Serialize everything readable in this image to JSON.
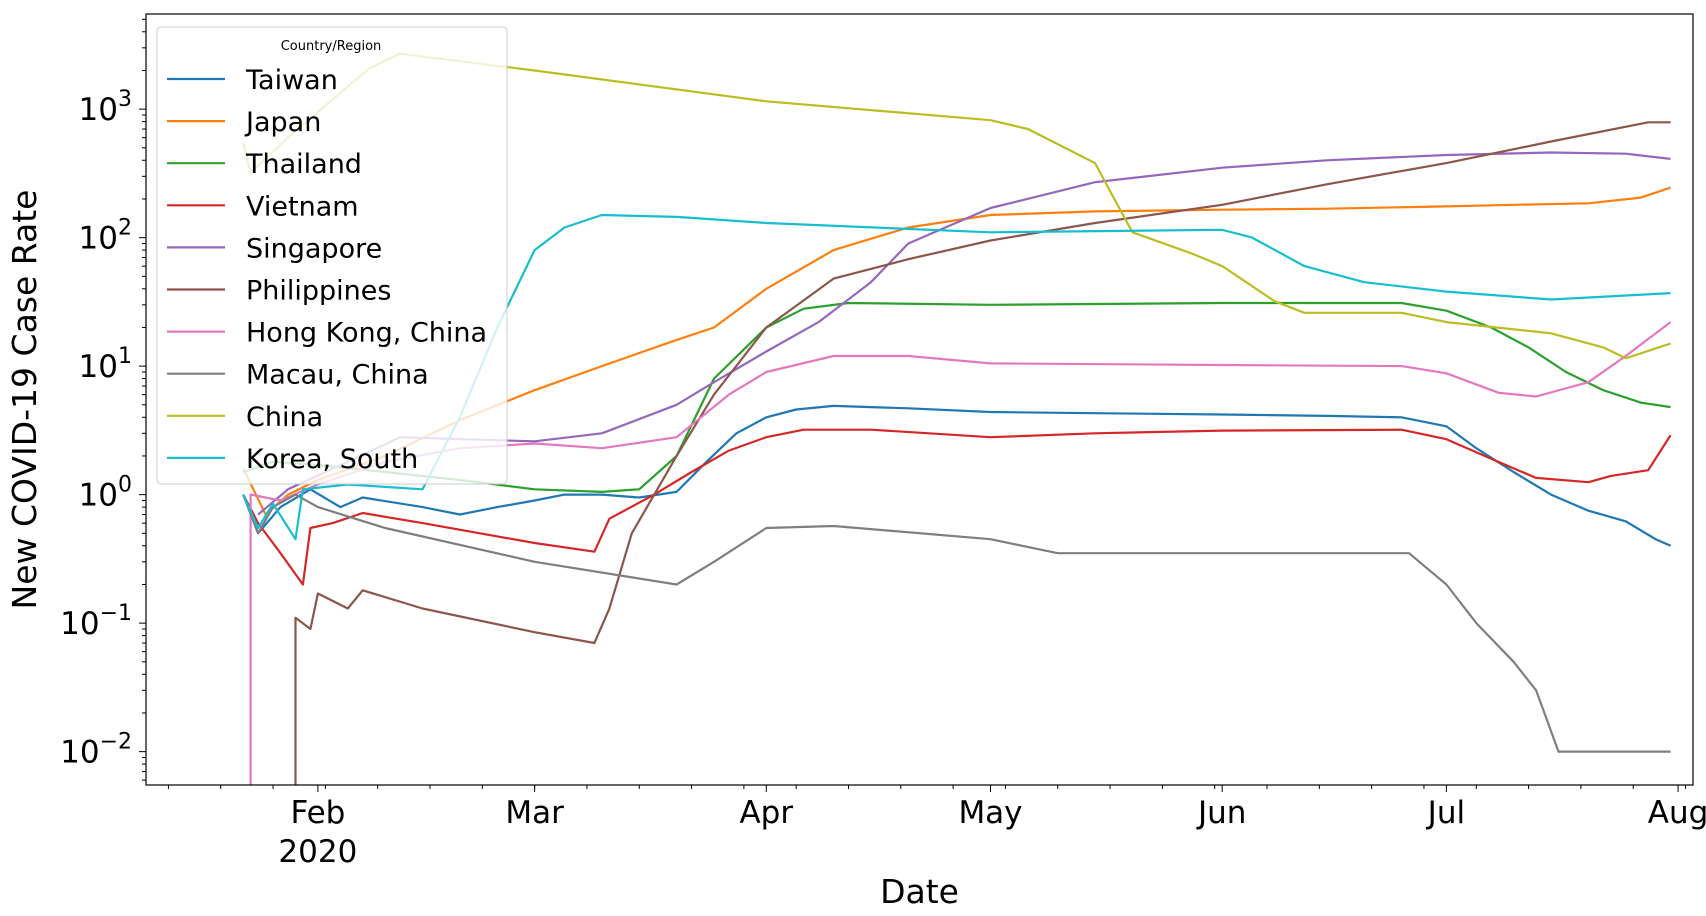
{
  "chart_data": {
    "type": "line",
    "title": "",
    "xlabel": "Date",
    "ylabel": "New COVID-19 Case Rate",
    "yscale": "log",
    "ylim": [
      0.0055,
      5500
    ],
    "xlim": [
      "2020-01-09",
      "2020-08-03"
    ],
    "grid": false,
    "legend": {
      "title": "Country/Region",
      "placement": "top-left"
    },
    "x_ticks": [
      {
        "date": "2020-02-01",
        "label": "Feb",
        "sublabel": "2020"
      },
      {
        "date": "2020-03-01",
        "label": "Mar",
        "sublabel": ""
      },
      {
        "date": "2020-04-01",
        "label": "Apr",
        "sublabel": ""
      },
      {
        "date": "2020-05-01",
        "label": "May",
        "sublabel": ""
      },
      {
        "date": "2020-06-01",
        "label": "Jun",
        "sublabel": ""
      },
      {
        "date": "2020-07-01",
        "label": "Jul",
        "sublabel": ""
      },
      {
        "date": "2020-08-01",
        "label": "Aug",
        "sublabel": ""
      }
    ],
    "y_ticks": [
      {
        "value": 0.01,
        "base": "10",
        "exp": "−2"
      },
      {
        "value": 0.1,
        "base": "10",
        "exp": "−1"
      },
      {
        "value": 1,
        "base": "10",
        "exp": "0"
      },
      {
        "value": 10,
        "base": "10",
        "exp": "1"
      },
      {
        "value": 100,
        "base": "10",
        "exp": "2"
      },
      {
        "value": 1000,
        "base": "10",
        "exp": "3"
      }
    ],
    "series": [
      {
        "name": "Taiwan",
        "color": "#1f77b4",
        "points": [
          [
            "2020-01-22",
            1
          ],
          [
            "2020-01-24",
            0.5
          ],
          [
            "2020-01-27",
            0.8
          ],
          [
            "2020-01-31",
            1.1
          ],
          [
            "2020-02-04",
            0.8
          ],
          [
            "2020-02-07",
            0.95
          ],
          [
            "2020-02-15",
            0.8
          ],
          [
            "2020-02-20",
            0.7
          ],
          [
            "2020-02-25",
            0.8
          ],
          [
            "2020-03-01",
            0.9
          ],
          [
            "2020-03-05",
            1.0
          ],
          [
            "2020-03-10",
            1.0
          ],
          [
            "2020-03-15",
            0.95
          ],
          [
            "2020-03-20",
            1.05
          ],
          [
            "2020-03-24",
            1.8
          ],
          [
            "2020-03-28",
            3.0
          ],
          [
            "2020-04-01",
            4.0
          ],
          [
            "2020-04-05",
            4.6
          ],
          [
            "2020-04-10",
            4.9
          ],
          [
            "2020-04-20",
            4.7
          ],
          [
            "2020-05-01",
            4.4
          ],
          [
            "2020-05-15",
            4.3
          ],
          [
            "2020-06-01",
            4.2
          ],
          [
            "2020-06-15",
            4.1
          ],
          [
            "2020-06-25",
            4.0
          ],
          [
            "2020-07-01",
            3.4
          ],
          [
            "2020-07-05",
            2.3
          ],
          [
            "2020-07-10",
            1.5
          ],
          [
            "2020-07-15",
            1.0
          ],
          [
            "2020-07-20",
            0.75
          ],
          [
            "2020-07-25",
            0.62
          ],
          [
            "2020-07-29",
            0.45
          ],
          [
            "2020-07-31",
            0.4
          ]
        ]
      },
      {
        "name": "Japan",
        "color": "#ff7f0e",
        "points": [
          [
            "2020-01-22",
            1.6
          ],
          [
            "2020-01-25",
            0.7
          ],
          [
            "2020-01-28",
            1.0
          ],
          [
            "2020-02-01",
            1.3
          ],
          [
            "2020-02-10",
            2.0
          ],
          [
            "2020-02-20",
            3.8
          ],
          [
            "2020-03-01",
            6.5
          ],
          [
            "2020-03-10",
            10
          ],
          [
            "2020-03-20",
            16
          ],
          [
            "2020-03-25",
            20
          ],
          [
            "2020-04-01",
            40
          ],
          [
            "2020-04-10",
            80
          ],
          [
            "2020-04-20",
            120
          ],
          [
            "2020-05-01",
            150
          ],
          [
            "2020-05-15",
            160
          ],
          [
            "2020-06-01",
            165
          ],
          [
            "2020-06-15",
            168
          ],
          [
            "2020-07-01",
            175
          ],
          [
            "2020-07-10",
            180
          ],
          [
            "2020-07-20",
            185
          ],
          [
            "2020-07-27",
            205
          ],
          [
            "2020-07-31",
            245
          ]
        ]
      },
      {
        "name": "Thailand",
        "color": "#2ca02c",
        "points": [
          [
            "2020-01-22",
            1.5
          ],
          [
            "2020-01-26",
            1.8
          ],
          [
            "2020-02-01",
            1.7
          ],
          [
            "2020-02-10",
            1.5
          ],
          [
            "2020-02-20",
            1.3
          ],
          [
            "2020-03-01",
            1.1
          ],
          [
            "2020-03-10",
            1.05
          ],
          [
            "2020-03-15",
            1.1
          ],
          [
            "2020-03-20",
            2.0
          ],
          [
            "2020-03-25",
            8.0
          ],
          [
            "2020-04-01",
            20
          ],
          [
            "2020-04-06",
            28
          ],
          [
            "2020-04-12",
            31
          ],
          [
            "2020-05-01",
            30
          ],
          [
            "2020-06-01",
            31
          ],
          [
            "2020-06-25",
            31
          ],
          [
            "2020-07-01",
            27
          ],
          [
            "2020-07-07",
            20
          ],
          [
            "2020-07-12",
            14
          ],
          [
            "2020-07-17",
            9
          ],
          [
            "2020-07-22",
            6.5
          ],
          [
            "2020-07-27",
            5.2
          ],
          [
            "2020-07-31",
            4.8
          ]
        ]
      },
      {
        "name": "Vietnam",
        "color": "#d62728",
        "points": [
          [
            "2020-01-22",
            1.0
          ],
          [
            "2020-01-24",
            0.6
          ],
          [
            "2020-01-27",
            0.35
          ],
          [
            "2020-01-30",
            0.2
          ],
          [
            "2020-01-31",
            0.55
          ],
          [
            "2020-02-03",
            0.6
          ],
          [
            "2020-02-07",
            0.72
          ],
          [
            "2020-02-15",
            0.6
          ],
          [
            "2020-03-01",
            0.42
          ],
          [
            "2020-03-09",
            0.36
          ],
          [
            "2020-03-11",
            0.65
          ],
          [
            "2020-03-17",
            1.0
          ],
          [
            "2020-03-22",
            1.5
          ],
          [
            "2020-03-27",
            2.2
          ],
          [
            "2020-04-01",
            2.8
          ],
          [
            "2020-04-06",
            3.2
          ],
          [
            "2020-04-15",
            3.2
          ],
          [
            "2020-05-01",
            2.8
          ],
          [
            "2020-05-15",
            3.0
          ],
          [
            "2020-06-01",
            3.15
          ],
          [
            "2020-06-25",
            3.2
          ],
          [
            "2020-07-01",
            2.7
          ],
          [
            "2020-07-07",
            1.9
          ],
          [
            "2020-07-13",
            1.35
          ],
          [
            "2020-07-20",
            1.25
          ],
          [
            "2020-07-23",
            1.4
          ],
          [
            "2020-07-28",
            1.55
          ],
          [
            "2020-07-31",
            2.9
          ]
        ]
      },
      {
        "name": "Singapore",
        "color": "#9467bd",
        "points": [
          [
            "2020-01-24",
            0.7
          ],
          [
            "2020-01-28",
            1.1
          ],
          [
            "2020-02-05",
            1.8
          ],
          [
            "2020-02-12",
            2.8
          ],
          [
            "2020-02-20",
            2.7
          ],
          [
            "2020-03-01",
            2.6
          ],
          [
            "2020-03-10",
            3.0
          ],
          [
            "2020-03-20",
            5.0
          ],
          [
            "2020-03-25",
            7.5
          ],
          [
            "2020-04-01",
            13
          ],
          [
            "2020-04-08",
            22
          ],
          [
            "2020-04-15",
            45
          ],
          [
            "2020-04-20",
            90
          ],
          [
            "2020-05-01",
            170
          ],
          [
            "2020-05-15",
            270
          ],
          [
            "2020-06-01",
            350
          ],
          [
            "2020-06-15",
            400
          ],
          [
            "2020-07-01",
            440
          ],
          [
            "2020-07-15",
            460
          ],
          [
            "2020-07-25",
            450
          ],
          [
            "2020-07-31",
            410
          ]
        ]
      },
      {
        "name": "Philippines",
        "color": "#8c564b",
        "points": [
          [
            "2020-01-29",
            0.005
          ],
          [
            "2020-01-29",
            0.11
          ],
          [
            "2020-01-31",
            0.09
          ],
          [
            "2020-02-01",
            0.17
          ],
          [
            "2020-02-05",
            0.13
          ],
          [
            "2020-02-07",
            0.18
          ],
          [
            "2020-02-15",
            0.13
          ],
          [
            "2020-03-01",
            0.085
          ],
          [
            "2020-03-09",
            0.07
          ],
          [
            "2020-03-11",
            0.13
          ],
          [
            "2020-03-14",
            0.5
          ],
          [
            "2020-03-20",
            2.0
          ],
          [
            "2020-03-25",
            6.0
          ],
          [
            "2020-04-01",
            20
          ],
          [
            "2020-04-10",
            48
          ],
          [
            "2020-04-20",
            68
          ],
          [
            "2020-05-01",
            95
          ],
          [
            "2020-05-15",
            130
          ],
          [
            "2020-06-01",
            180
          ],
          [
            "2020-06-15",
            260
          ],
          [
            "2020-07-01",
            380
          ],
          [
            "2020-07-15",
            560
          ],
          [
            "2020-07-28",
            790
          ],
          [
            "2020-07-31",
            790
          ]
        ]
      },
      {
        "name": "Hong Kong, China",
        "color": "#e377c2",
        "points": [
          [
            "2020-01-23",
            0.005
          ],
          [
            "2020-01-23",
            1.0
          ],
          [
            "2020-01-27",
            0.9
          ],
          [
            "2020-02-01",
            1.2
          ],
          [
            "2020-02-10",
            1.8
          ],
          [
            "2020-02-20",
            2.3
          ],
          [
            "2020-03-01",
            2.5
          ],
          [
            "2020-03-10",
            2.3
          ],
          [
            "2020-03-20",
            2.8
          ],
          [
            "2020-03-27",
            6.0
          ],
          [
            "2020-04-01",
            9.0
          ],
          [
            "2020-04-10",
            12
          ],
          [
            "2020-04-20",
            12
          ],
          [
            "2020-05-01",
            10.5
          ],
          [
            "2020-06-01",
            10.2
          ],
          [
            "2020-06-25",
            10
          ],
          [
            "2020-07-01",
            8.8
          ],
          [
            "2020-07-08",
            6.2
          ],
          [
            "2020-07-13",
            5.8
          ],
          [
            "2020-07-20",
            7.5
          ],
          [
            "2020-07-25",
            12
          ],
          [
            "2020-07-31",
            22
          ]
        ]
      },
      {
        "name": "Macau, China",
        "color": "#7f7f7f",
        "points": [
          [
            "2020-01-22",
            1.0
          ],
          [
            "2020-01-24",
            0.5
          ],
          [
            "2020-01-26",
            0.8
          ],
          [
            "2020-01-29",
            1.0
          ],
          [
            "2020-02-01",
            0.8
          ],
          [
            "2020-02-10",
            0.55
          ],
          [
            "2020-03-01",
            0.3
          ],
          [
            "2020-03-20",
            0.2
          ],
          [
            "2020-03-25",
            0.3
          ],
          [
            "2020-04-01",
            0.55
          ],
          [
            "2020-04-10",
            0.57
          ],
          [
            "2020-05-01",
            0.45
          ],
          [
            "2020-05-10",
            0.35
          ],
          [
            "2020-06-26",
            0.35
          ],
          [
            "2020-07-01",
            0.2
          ],
          [
            "2020-07-05",
            0.1
          ],
          [
            "2020-07-10",
            0.05
          ],
          [
            "2020-07-13",
            0.03
          ],
          [
            "2020-07-16",
            0.01
          ],
          [
            "2020-07-31",
            0.01
          ]
        ]
      },
      {
        "name": "China",
        "color": "#bcbd22",
        "points": [
          [
            "2020-01-22",
            550
          ],
          [
            "2020-01-23",
            320
          ],
          [
            "2020-01-28",
            600
          ],
          [
            "2020-02-05",
            1500
          ],
          [
            "2020-02-08",
            2100
          ],
          [
            "2020-02-12",
            2700
          ],
          [
            "2020-03-01",
            2000
          ],
          [
            "2020-04-01",
            1150
          ],
          [
            "2020-05-01",
            820
          ],
          [
            "2020-05-06",
            700
          ],
          [
            "2020-05-15",
            380
          ],
          [
            "2020-05-17",
            230
          ],
          [
            "2020-05-20",
            110
          ],
          [
            "2020-05-28",
            75
          ],
          [
            "2020-06-01",
            60
          ],
          [
            "2020-06-08",
            32
          ],
          [
            "2020-06-12",
            26
          ],
          [
            "2020-06-25",
            26
          ],
          [
            "2020-07-01",
            22
          ],
          [
            "2020-07-15",
            18
          ],
          [
            "2020-07-22",
            14
          ],
          [
            "2020-07-25",
            11.5
          ],
          [
            "2020-07-31",
            15
          ]
        ]
      },
      {
        "name": "Korea, South",
        "color": "#17becf",
        "points": [
          [
            "2020-01-22",
            1.0
          ],
          [
            "2020-01-24",
            0.55
          ],
          [
            "2020-01-26",
            0.85
          ],
          [
            "2020-01-29",
            0.45
          ],
          [
            "2020-01-30",
            1.1
          ],
          [
            "2020-02-05",
            1.2
          ],
          [
            "2020-02-15",
            1.1
          ],
          [
            "2020-02-20",
            4.0
          ],
          [
            "2020-02-25",
            20
          ],
          [
            "2020-03-01",
            80
          ],
          [
            "2020-03-05",
            120
          ],
          [
            "2020-03-10",
            150
          ],
          [
            "2020-03-20",
            145
          ],
          [
            "2020-04-01",
            130
          ],
          [
            "2020-05-01",
            110
          ],
          [
            "2020-06-01",
            115
          ],
          [
            "2020-06-05",
            100
          ],
          [
            "2020-06-12",
            60
          ],
          [
            "2020-06-20",
            45
          ],
          [
            "2020-07-01",
            38
          ],
          [
            "2020-07-15",
            33
          ],
          [
            "2020-07-31",
            37
          ]
        ]
      }
    ]
  }
}
